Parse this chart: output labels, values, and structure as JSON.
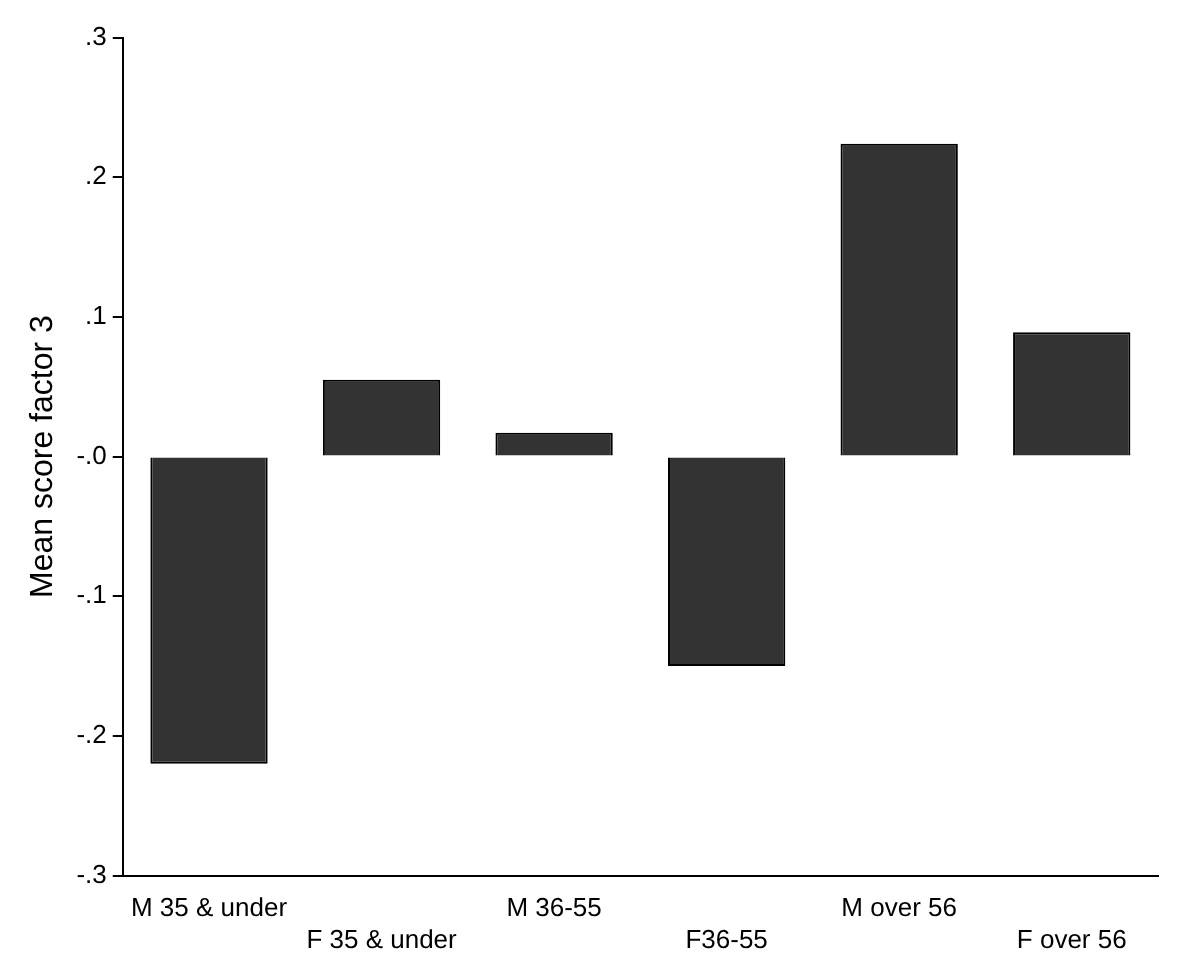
{
  "chart_data": {
    "type": "bar",
    "ylabel": "Mean score factor 3",
    "categories": [
      "M 35 & under",
      "F 35 & under",
      "M 36-55",
      "F36-55",
      "M over 56",
      "F over 56"
    ],
    "values": [
      -0.22,
      0.055,
      0.017,
      -0.15,
      0.224,
      0.089
    ],
    "color": "#333333",
    "ylim": [
      -0.3,
      0.3
    ],
    "yticks": [
      {
        "value": -0.3,
        "label": "-.3"
      },
      {
        "value": -0.2,
        "label": "-.2"
      },
      {
        "value": -0.1,
        "label": "-.1"
      },
      {
        "value": 0,
        "label": "-.0"
      },
      {
        "value": 0.1,
        "label": ".1"
      },
      {
        "value": 0.2,
        "label": ".2"
      },
      {
        "value": 0.3,
        "label": ".3"
      }
    ],
    "grid": false,
    "legend": false
  }
}
